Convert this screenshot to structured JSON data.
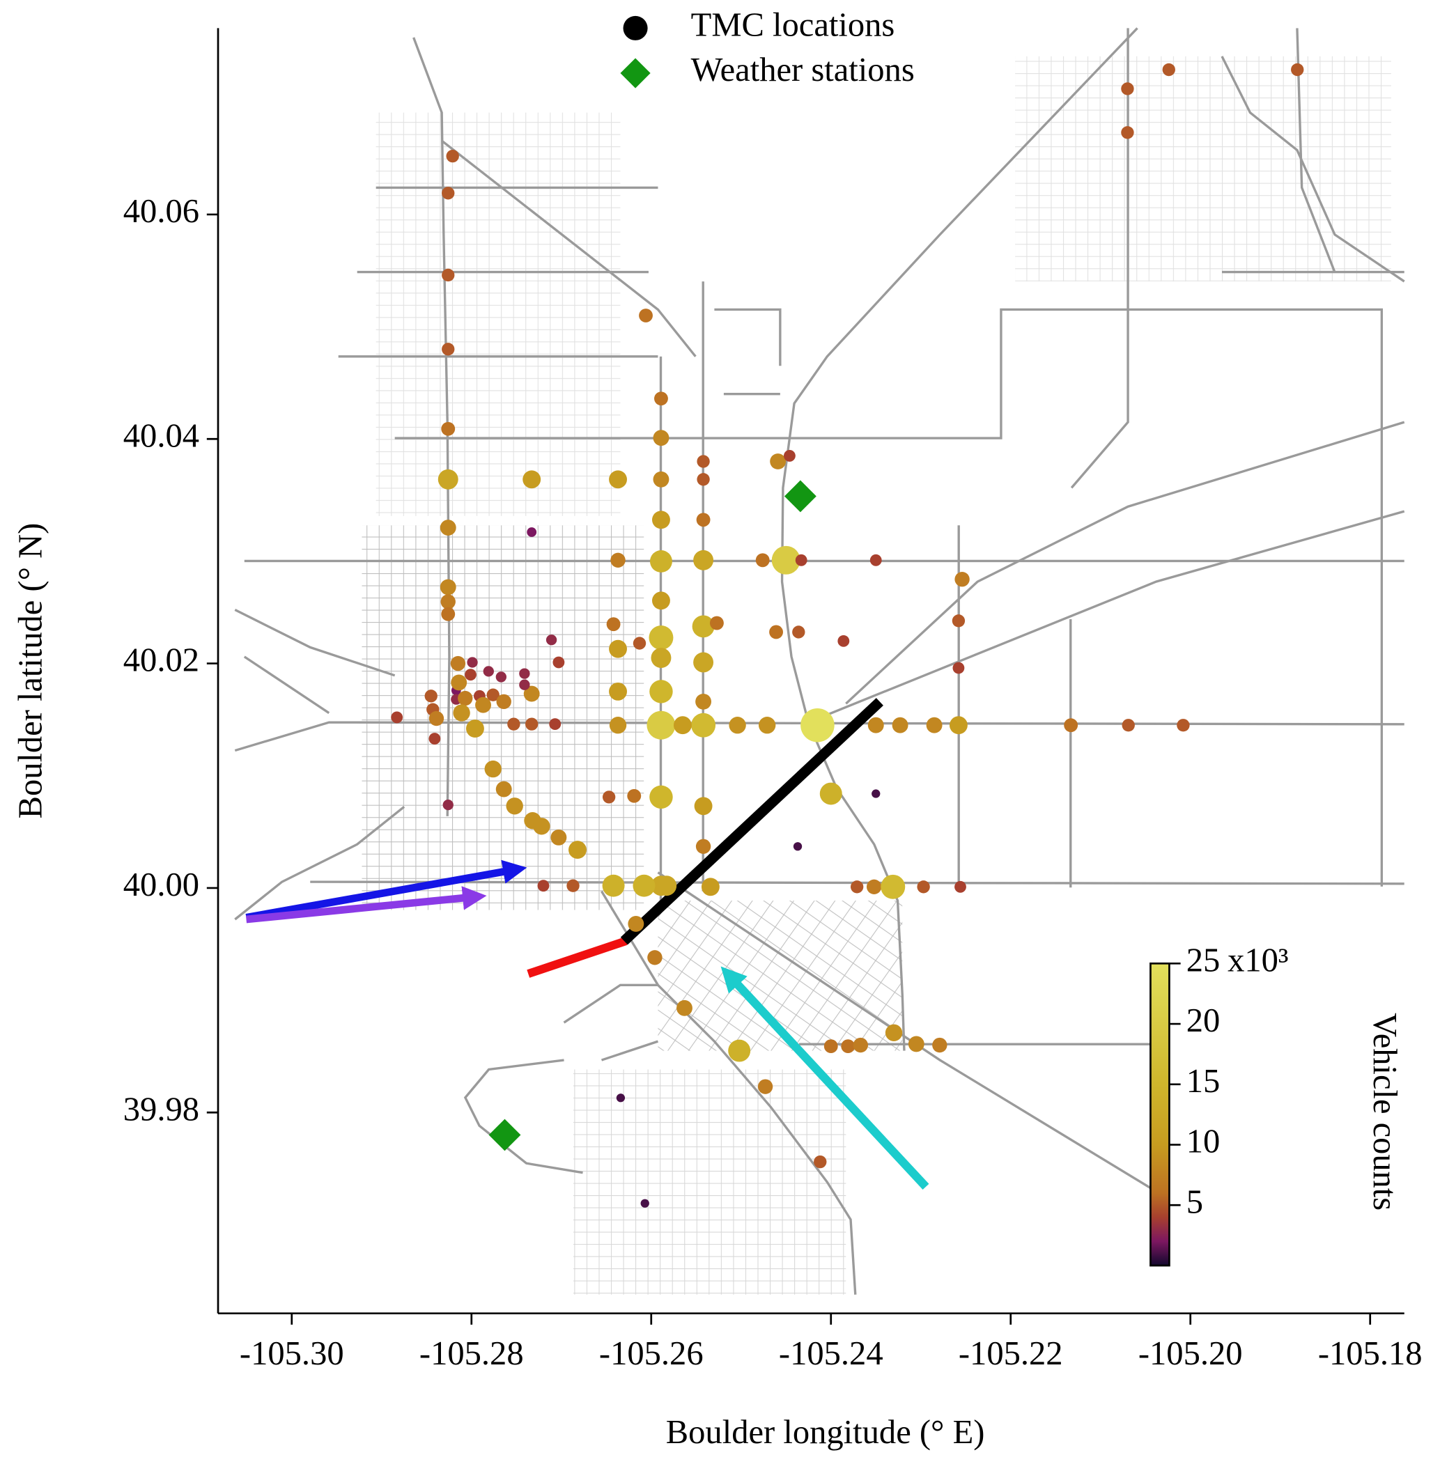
{
  "chart_data": {
    "type": "scatter",
    "xlabel": "Boulder longitude (° E)",
    "ylabel": "Boulder latitude (° N)",
    "xlim": [
      -105.3082,
      -105.1762
    ],
    "ylim": [
      39.9621,
      40.0766
    ],
    "xticks": [
      {
        "value": -105.3,
        "label": "-105.30"
      },
      -105.28,
      -105.26,
      -105.24,
      -105.22,
      {
        "value": -105.2,
        "label": "-105.20"
      },
      -105.18
    ],
    "yticks": [
      39.98,
      {
        "value": 40,
        "label": "40.00"
      },
      40.02,
      40.04,
      40.06
    ],
    "series": [
      {
        "name": "TMC locations",
        "color": "#000000",
        "marker": "circle",
        "x": [
          -105.2821,
          -105.2826,
          -105.2826,
          -105.2826,
          -105.2826,
          -105.2826,
          -105.2826,
          -105.2826,
          -105.2826,
          -105.2826,
          -105.2826,
          -105.2841,
          -105.207,
          -105.2024,
          -105.1881,
          -105.207,
          -105.2606,
          -105.2589,
          -105.2589,
          -105.2589,
          -105.2589,
          -105.2589,
          -105.2589,
          -105.2589,
          -105.2589,
          -105.2589,
          -105.2589,
          -105.2589,
          -105.2589,
          -105.2542,
          -105.2542,
          -105.2542,
          -105.2542,
          -105.2542,
          -105.2542,
          -105.2542,
          -105.2542,
          -105.2542,
          -105.2542,
          -105.2534,
          -105.2637,
          -105.2637,
          -105.2642,
          -105.2637,
          -105.2637,
          -105.2637,
          -105.2647,
          -105.2619,
          -105.2642,
          -105.2608,
          -105.2583,
          -105.2617,
          -105.2596,
          -105.2565,
          -105.2504,
          -105.2471,
          -105.2415,
          -105.235,
          -105.2323,
          -105.2285,
          -105.2258,
          -105.2133,
          -105.2069,
          -105.2008,
          -105.2459,
          -105.2446,
          -105.245,
          -105.2476,
          -105.2433,
          -105.235,
          -105.2461,
          -105.2436,
          -105.2386,
          -105.2613,
          -105.2254,
          -105.2258,
          -105.2258,
          -105.24,
          -105.235,
          -105.2437,
          -105.2527,
          -105.2371,
          -105.2352,
          -105.2331,
          -105.2297,
          -105.2256,
          -105.233,
          -105.2305,
          -105.2279,
          -105.24,
          -105.2381,
          -105.2367,
          -105.2563,
          -105.2502,
          -105.2473,
          -105.2412,
          -105.2634,
          -105.2607,
          -105.2733,
          -105.2733,
          -105.2711,
          -105.2703,
          -105.2733,
          -105.2733,
          -105.2707,
          -105.2753,
          -105.2776,
          -105.2764,
          -105.2752,
          -105.2732,
          -105.2722,
          -105.2703,
          -105.2682,
          -105.2687,
          -105.272,
          -105.2815,
          -105.2801,
          -105.2799,
          -105.2781,
          -105.2767,
          -105.2741,
          -105.2741,
          -105.2817,
          -105.2817,
          -105.2807,
          -105.2791,
          -105.2776,
          -105.2764,
          -105.2787,
          -105.2796,
          -105.2811,
          -105.2845,
          -105.2843,
          -105.2839,
          -105.2883,
          -105.2814
        ],
        "y": [
          40.0652,
          40.0619,
          40.0546,
          40.048,
          40.0409,
          40.0364,
          40.0321,
          40.0268,
          40.0255,
          40.0244,
          40.0074,
          40.0133,
          40.0712,
          40.0729,
          40.0729,
          40.0673,
          40.051,
          40.0436,
          40.0401,
          40.0364,
          40.0328,
          40.0291,
          40.0256,
          40.0223,
          40.0205,
          40.0175,
          40.0145,
          40.0081,
          40.0002,
          40.038,
          40.0364,
          40.0328,
          40.0292,
          40.0233,
          40.0201,
          40.0166,
          40.0145,
          40.0073,
          40.0037,
          40.0001,
          40.0364,
          40.0292,
          40.0235,
          40.0213,
          40.0175,
          40.0145,
          40.0081,
          40.0082,
          40.0002,
          40.0002,
          40.0002,
          39.9968,
          39.9938,
          40.0145,
          40.0145,
          40.0145,
          40.0145,
          40.0145,
          40.0145,
          40.0145,
          40.0145,
          40.0145,
          40.0145,
          40.0145,
          40.038,
          40.0385,
          40.0292,
          40.0292,
          40.0292,
          40.0292,
          40.0228,
          40.0228,
          40.022,
          40.0218,
          40.0275,
          40.0238,
          40.0196,
          40.0084,
          40.0084,
          40.0037,
          40.0236,
          40.0001,
          40.0001,
          40.0001,
          40.0001,
          40.0001,
          39.9871,
          39.9861,
          39.986,
          39.9859,
          39.9859,
          39.986,
          39.9893,
          39.9855,
          39.9823,
          39.9756,
          39.9813,
          39.9719,
          40.0364,
          40.0317,
          40.0221,
          40.0201,
          40.0173,
          40.0146,
          40.0146,
          40.0146,
          40.0106,
          40.0088,
          40.0073,
          40.006,
          40.0055,
          40.0045,
          40.0034,
          40.0002,
          40.0002,
          40.02,
          40.019,
          40.0201,
          40.0193,
          40.0188,
          40.0191,
          40.0181,
          40.0176,
          40.0168,
          40.0169,
          40.0171,
          40.0172,
          40.0166,
          40.0163,
          40.0142,
          40.0156,
          40.0171,
          40.0159,
          40.0151,
          40.0152,
          40.0183
        ],
        "values": [
          5,
          5,
          5,
          5,
          6,
          12,
          8,
          8,
          7,
          6,
          3,
          4,
          5,
          5,
          5,
          5,
          6,
          6,
          8,
          8,
          10,
          14,
          10,
          16,
          12,
          15,
          20,
          15,
          12,
          5,
          5,
          6,
          12,
          14,
          12,
          8,
          16,
          10,
          7,
          10,
          10,
          7,
          6,
          10,
          10,
          9,
          5,
          6,
          14,
          14,
          12,
          8,
          7,
          10,
          9,
          9,
          25,
          8,
          8,
          8,
          10,
          6,
          5,
          5,
          8,
          4,
          20,
          6,
          4,
          4,
          6,
          5,
          4,
          5,
          7,
          5,
          4,
          14,
          1,
          1,
          6,
          5,
          7,
          16,
          5,
          4,
          9,
          8,
          7,
          6,
          6,
          7,
          8,
          14,
          7,
          5,
          1,
          1,
          10,
          2,
          3,
          4,
          8,
          5,
          4,
          5,
          9,
          8,
          9,
          9,
          9,
          8,
          10,
          5,
          4,
          7,
          4,
          3,
          3,
          3,
          3,
          3,
          2,
          3,
          7,
          4,
          5,
          7,
          8,
          10,
          9,
          5,
          5,
          7,
          4,
          8
        ]
      },
      {
        "name": "Weather stations",
        "color": "#129612",
        "marker": "diamond",
        "x": [
          -105.2434,
          -105.2763
        ],
        "y": [
          40.0349,
          39.978
        ]
      }
    ],
    "colorbar": {
      "label": "Vehicle counts",
      "multiplier": "x10³",
      "lim": [
        0,
        25
      ],
      "ticks": [
        5,
        10,
        15,
        20,
        25
      ],
      "colorscale": [
        [
          0,
          "#12082e"
        ],
        [
          2,
          "#7c1760"
        ],
        [
          4,
          "#a8402e"
        ],
        [
          6,
          "#bd7222"
        ],
        [
          10,
          "#c79c20"
        ],
        [
          15,
          "#cfb62c"
        ],
        [
          25,
          "#e2e05c"
        ]
      ]
    }
  }
}
